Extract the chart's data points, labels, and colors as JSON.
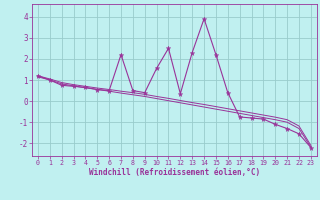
{
  "x_data": [
    0,
    1,
    2,
    3,
    4,
    5,
    6,
    7,
    8,
    9,
    10,
    11,
    12,
    13,
    14,
    15,
    16,
    17,
    18,
    19,
    20,
    21,
    22,
    23
  ],
  "y_main": [
    1.2,
    1.0,
    0.75,
    0.7,
    0.65,
    0.55,
    0.5,
    2.2,
    0.5,
    0.4,
    1.55,
    2.5,
    0.35,
    2.3,
    3.9,
    2.2,
    0.4,
    -0.75,
    -0.8,
    -0.85,
    -1.1,
    -1.3,
    -1.55,
    -2.2
  ],
  "y_trend1": [
    1.15,
    1.0,
    0.82,
    0.72,
    0.63,
    0.55,
    0.47,
    0.38,
    0.3,
    0.22,
    0.12,
    0.02,
    -0.08,
    -0.18,
    -0.28,
    -0.38,
    -0.48,
    -0.58,
    -0.68,
    -0.78,
    -0.88,
    -1.0,
    -1.3,
    -2.18
  ],
  "y_trend2": [
    1.2,
    1.05,
    0.88,
    0.78,
    0.7,
    0.62,
    0.55,
    0.47,
    0.4,
    0.32,
    0.22,
    0.13,
    0.03,
    -0.07,
    -0.16,
    -0.26,
    -0.36,
    -0.46,
    -0.56,
    -0.66,
    -0.76,
    -0.88,
    -1.18,
    -2.1
  ],
  "line_color": "#993399",
  "bg_color": "#c0f0f0",
  "grid_color": "#99cccc",
  "xlabel": "Windchill (Refroidissement éolien,°C)",
  "ylim": [
    -2.6,
    4.6
  ],
  "xlim": [
    -0.5,
    23.5
  ],
  "yticks": [
    -2,
    -1,
    0,
    1,
    2,
    3,
    4
  ],
  "xticks": [
    0,
    1,
    2,
    3,
    4,
    5,
    6,
    7,
    8,
    9,
    10,
    11,
    12,
    13,
    14,
    15,
    16,
    17,
    18,
    19,
    20,
    21,
    22,
    23
  ]
}
